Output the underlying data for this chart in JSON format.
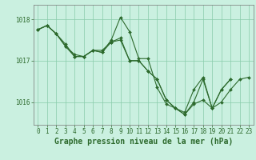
{
  "title": "Graphe pression niveau de la mer (hPa)",
  "background_color": "#caf0e0",
  "grid_color": "#88ccaa",
  "line_color": "#2d6a2d",
  "xlim": [
    -0.5,
    23.5
  ],
  "ylim": [
    1015.45,
    1018.35
  ],
  "yticks": [
    1016,
    1017,
    1018
  ],
  "xticks": [
    0,
    1,
    2,
    3,
    4,
    5,
    6,
    7,
    8,
    9,
    10,
    11,
    12,
    13,
    14,
    15,
    16,
    17,
    18,
    19,
    20,
    21,
    22,
    23
  ],
  "tick_fontsize": 5.5,
  "xlabel_fontsize": 7.0,
  "s1_x": [
    0,
    1,
    2,
    3,
    4,
    5,
    6,
    7,
    8,
    9,
    10,
    11,
    12,
    13,
    14,
    15,
    16,
    17,
    18,
    19,
    20,
    21
  ],
  "s1_y": [
    1017.75,
    1017.85,
    1017.65,
    1017.4,
    1017.1,
    1017.1,
    1017.25,
    1017.25,
    1017.45,
    1017.55,
    1017.0,
    1017.0,
    1016.75,
    1016.55,
    1016.05,
    1015.85,
    1015.75,
    1016.3,
    1016.6,
    1015.85,
    1016.3,
    1016.55
  ],
  "s2_x": [
    0,
    1,
    2,
    3,
    4,
    5,
    6,
    7,
    8,
    9,
    10,
    11,
    12,
    13,
    14,
    15,
    16,
    17,
    18,
    19,
    20,
    21
  ],
  "s2_y": [
    1017.75,
    1017.85,
    1017.65,
    1017.35,
    1017.1,
    1017.1,
    1017.25,
    1017.2,
    1017.5,
    1018.05,
    1017.7,
    1017.05,
    1017.05,
    1016.35,
    1015.95,
    1015.85,
    1015.7,
    1015.95,
    1016.05,
    1015.85,
    1016.3,
    1016.55
  ],
  "s3_x": [
    0,
    1,
    2,
    3,
    4,
    5,
    6,
    7,
    8,
    9,
    10,
    11,
    12,
    13,
    14,
    15,
    16,
    17,
    18,
    19,
    20,
    21,
    22,
    23
  ],
  "s3_y": [
    1017.75,
    1017.85,
    1017.65,
    1017.35,
    1017.15,
    1017.1,
    1017.25,
    1017.2,
    1017.45,
    1017.5,
    1017.0,
    1017.0,
    1016.75,
    1016.55,
    1016.05,
    1015.85,
    1015.7,
    1016.0,
    1016.55,
    1015.85,
    1016.0,
    1016.3,
    1016.55,
    1016.6
  ]
}
